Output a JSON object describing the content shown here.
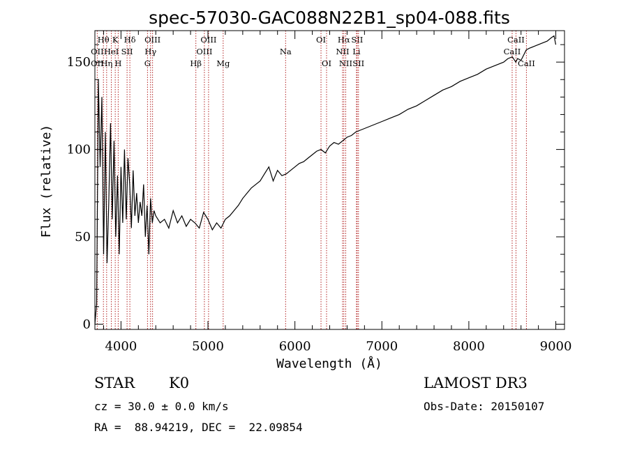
{
  "chart_data": {
    "type": "line",
    "title": "spec-57030-GAC088N22B1_sp04-088.fits",
    "xlabel": "Wavelength (Å)",
    "ylabel": "Flux (relative)",
    "xlim": [
      3700,
      9100
    ],
    "ylim": [
      -3,
      168
    ],
    "x_ticks": [
      4000,
      5000,
      6000,
      7000,
      8000,
      9000
    ],
    "y_ticks": [
      0,
      50,
      100,
      150
    ],
    "grid": false,
    "line_color": "#000000",
    "marker_color": "#b22222",
    "spectrum": {
      "x": [
        3700,
        3720,
        3740,
        3760,
        3780,
        3800,
        3820,
        3840,
        3860,
        3880,
        3900,
        3920,
        3940,
        3960,
        3980,
        4000,
        4020,
        4040,
        4060,
        4080,
        4100,
        4120,
        4140,
        4160,
        4180,
        4200,
        4220,
        4240,
        4260,
        4280,
        4300,
        4320,
        4340,
        4360,
        4380,
        4400,
        4450,
        4500,
        4550,
        4600,
        4650,
        4700,
        4750,
        4800,
        4850,
        4900,
        4950,
        5000,
        5050,
        5100,
        5150,
        5200,
        5250,
        5300,
        5350,
        5400,
        5450,
        5500,
        5550,
        5600,
        5650,
        5700,
        5750,
        5800,
        5850,
        5900,
        5950,
        6000,
        6050,
        6100,
        6150,
        6200,
        6250,
        6300,
        6350,
        6400,
        6450,
        6500,
        6550,
        6600,
        6650,
        6700,
        6750,
        6800,
        6900,
        7000,
        7100,
        7200,
        7300,
        7400,
        7500,
        7600,
        7700,
        7800,
        7900,
        8000,
        8100,
        8200,
        8300,
        8400,
        8450,
        8500,
        8540,
        8560,
        8600,
        8640,
        8660,
        8700,
        8750,
        8800,
        8850,
        8900,
        8950,
        8980,
        9000
      ],
      "y": [
        0,
        12,
        140,
        90,
        130,
        40,
        110,
        35,
        70,
        115,
        60,
        105,
        50,
        85,
        40,
        90,
        58,
        100,
        60,
        95,
        80,
        55,
        88,
        62,
        75,
        58,
        70,
        62,
        80,
        50,
        68,
        40,
        72,
        58,
        65,
        62,
        58,
        60,
        55,
        65,
        58,
        62,
        56,
        60,
        58,
        55,
        64,
        60,
        54,
        58,
        55,
        60,
        62,
        65,
        68,
        72,
        75,
        78,
        80,
        82,
        86,
        90,
        82,
        88,
        85,
        86,
        88,
        90,
        92,
        93,
        95,
        97,
        99,
        100,
        98,
        102,
        104,
        103,
        105,
        107,
        108,
        110,
        111,
        112,
        114,
        116,
        118,
        120,
        123,
        125,
        128,
        131,
        134,
        136,
        139,
        141,
        143,
        146,
        148,
        150,
        152,
        153,
        150,
        152,
        151,
        155,
        157,
        158,
        159,
        160,
        161,
        162,
        164,
        165,
        160
      ]
    },
    "lines": [
      {
        "label": "Hθ",
        "x": 3798,
        "row": 1
      },
      {
        "label": "OII",
        "x": 3727,
        "row": 2
      },
      {
        "label": "OII",
        "x": 3727,
        "row": 3
      },
      {
        "label": "K",
        "x": 3934,
        "row": 1
      },
      {
        "label": "HeI",
        "x": 3889,
        "row": 2
      },
      {
        "label": "Hη",
        "x": 3835,
        "row": 3
      },
      {
        "label": "SII",
        "x": 4070,
        "row": 2
      },
      {
        "label": "H",
        "x": 3968,
        "row": 3
      },
      {
        "label": "Hδ",
        "x": 4102,
        "row": 1
      },
      {
        "label": "OIII",
        "x": 4363,
        "row": 1
      },
      {
        "label": "Hγ",
        "x": 4340,
        "row": 2
      },
      {
        "label": "G",
        "x": 4305,
        "row": 3
      },
      {
        "label": "OIII",
        "x": 5007,
        "row": 1
      },
      {
        "label": "OIII",
        "x": 4959,
        "row": 2
      },
      {
        "label": "Hβ",
        "x": 4861,
        "row": 3
      },
      {
        "label": "Mg",
        "x": 5175,
        "row": 3
      },
      {
        "label": "Na",
        "x": 5893,
        "row": 2
      },
      {
        "label": "OI",
        "x": 6300,
        "row": 1
      },
      {
        "label": "OI",
        "x": 6364,
        "row": 3
      },
      {
        "label": "Hα",
        "x": 6563,
        "row": 1
      },
      {
        "label": "NII",
        "x": 6548,
        "row": 2
      },
      {
        "label": "NII",
        "x": 6584,
        "row": 3
      },
      {
        "label": "SII",
        "x": 6716,
        "row": 1
      },
      {
        "label": "Li",
        "x": 6708,
        "row": 2
      },
      {
        "label": "SII",
        "x": 6731,
        "row": 3
      },
      {
        "label": "CaII",
        "x": 8542,
        "row": 1
      },
      {
        "label": "CaII",
        "x": 8498,
        "row": 2
      },
      {
        "label": "CaII",
        "x": 8662,
        "row": 3
      }
    ]
  },
  "info": {
    "class": "STAR",
    "subclass": "K0",
    "survey": "LAMOST DR3",
    "redshift": "cz = 30.0 ± 0.0 km/s",
    "obs_date": "Obs-Date: 20150107",
    "coords": "RA =  88.94219, DEC =  22.09854"
  }
}
